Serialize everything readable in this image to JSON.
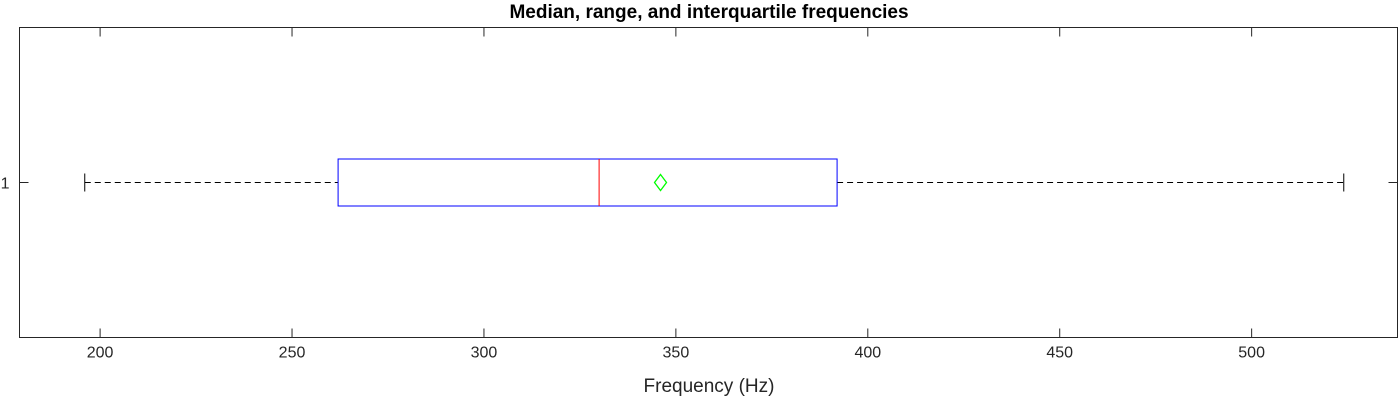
{
  "chart_data": {
    "type": "boxplot",
    "title": "Median, range, and interquartile frequencies",
    "xlabel": "Frequency (Hz)",
    "ylabel": "",
    "xlim": [
      179,
      538
    ],
    "x_ticks": [
      200,
      250,
      300,
      350,
      400,
      450,
      500
    ],
    "y_ticks": [
      "1"
    ],
    "orientation": "horizontal",
    "grid": false,
    "boxes": [
      {
        "category": "1",
        "min": 196,
        "q1": 262,
        "median": 330,
        "q3": 392,
        "max": 524,
        "mean": 346
      }
    ],
    "colors": {
      "box": "#0000ff",
      "median": "#ff0000",
      "mean_marker": "#00ff00",
      "whisker": "#000000",
      "axes": "#262626"
    },
    "markers": {
      "mean": "diamond"
    }
  }
}
